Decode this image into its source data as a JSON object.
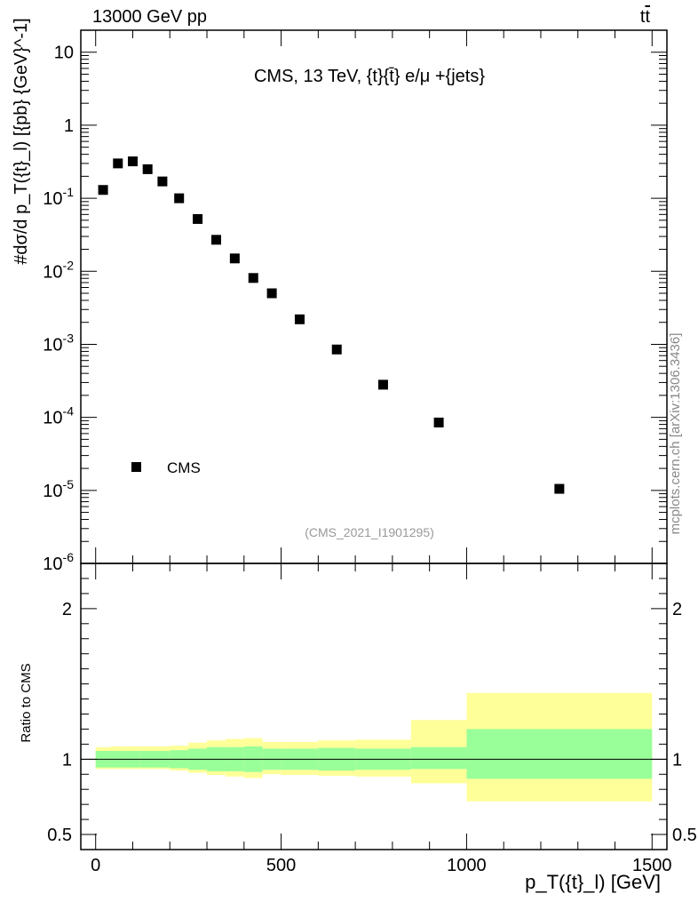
{
  "header": {
    "energy_label": "13000 GeV pp",
    "process_label_t": "t",
    "process_label_tbar": "t"
  },
  "side_text": "mcplots.cern.ch [arXiv:1306.3436]",
  "chart_data": [
    {
      "type": "scatter",
      "title": "CMS, 13 TeV, {t}{t̄} e/μ +{jets}",
      "ylabel": "#dσ/d p_T({t}_l) [{pb} {GeV}^-1]",
      "xlabel": "p_T({t}_l) [GeV]",
      "yscale": "log",
      "ylim": [
        1e-06,
        20
      ],
      "xlim": [
        -40,
        1540
      ],
      "y_ticks": [
        "10",
        "1",
        "10^-1",
        "10^-2",
        "10^-3",
        "10^-4",
        "10^-5",
        "10^-6"
      ],
      "analysis_id": "(CMS_2021_I1901295)",
      "legend": {
        "label": "CMS",
        "marker": "square",
        "position": "bottom-left"
      },
      "series": [
        {
          "name": "CMS",
          "x": [
            20,
            60,
            100,
            140,
            180,
            225,
            275,
            325,
            375,
            425,
            475,
            550,
            650,
            775,
            925,
            1250
          ],
          "y": [
            0.13,
            0.3,
            0.32,
            0.25,
            0.17,
            0.1,
            0.052,
            0.027,
            0.015,
            0.0081,
            0.005,
            0.0022,
            0.00085,
            0.00028,
            8.5e-05,
            1.05e-05
          ]
        }
      ]
    },
    {
      "type": "area",
      "ylabel": "Ratio to CMS",
      "xlabel": "p_T({t}_l) [GeV]",
      "ylim": [
        0.4,
        2.3
      ],
      "xlim": [
        -40,
        1540
      ],
      "y_ticks_labels": [
        "0.5",
        "1",
        "2"
      ],
      "x_ticks_labels": [
        "0",
        "500",
        "1000",
        "1500"
      ],
      "reference_line": 1,
      "bins": [
        0,
        40,
        80,
        120,
        160,
        200,
        250,
        300,
        350,
        400,
        450,
        500,
        600,
        700,
        850,
        1000,
        1500
      ],
      "band_inner": {
        "color": "#99ff99",
        "low": [
          0.945,
          0.945,
          0.945,
          0.945,
          0.945,
          0.94,
          0.93,
          0.92,
          0.92,
          0.915,
          0.93,
          0.93,
          0.925,
          0.93,
          0.935,
          0.87
        ],
        "high": [
          1.055,
          1.055,
          1.055,
          1.055,
          1.055,
          1.06,
          1.07,
          1.08,
          1.08,
          1.085,
          1.07,
          1.07,
          1.075,
          1.07,
          1.08,
          1.2
        ]
      },
      "band_outer": {
        "color": "#ffff99",
        "low": [
          0.935,
          0.935,
          0.935,
          0.935,
          0.935,
          0.925,
          0.91,
          0.895,
          0.885,
          0.875,
          0.9,
          0.895,
          0.89,
          0.885,
          0.84,
          0.72
        ],
        "high": [
          1.08,
          1.085,
          1.085,
          1.085,
          1.085,
          1.09,
          1.11,
          1.125,
          1.135,
          1.14,
          1.115,
          1.115,
          1.125,
          1.13,
          1.26,
          1.44
        ]
      }
    }
  ]
}
